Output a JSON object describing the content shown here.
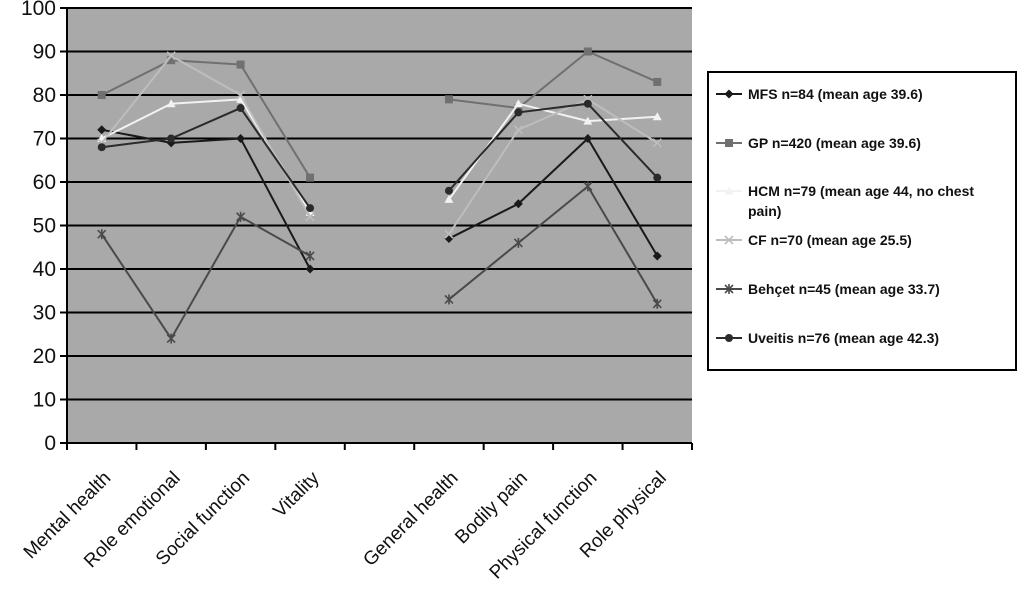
{
  "chart_data": {
    "type": "line",
    "title": "",
    "xlabel": "",
    "ylabel": "",
    "ylim": [
      0,
      100
    ],
    "yticks": [
      0,
      10,
      20,
      30,
      40,
      50,
      60,
      70,
      80,
      90,
      100
    ],
    "grid": true,
    "legend_position": "right",
    "plot_background": "#a9a9a9",
    "categories": [
      "Mental health",
      "Role emotional",
      "Social function",
      "Vitality",
      "",
      "General health",
      "Bodily pain",
      "Physical function",
      "Role physical"
    ],
    "series": [
      {
        "name": "MFS n=84 (mean age 39.6)",
        "color": "#1a1a1a",
        "marker": "diamond",
        "values": [
          72,
          69,
          70,
          40,
          null,
          47,
          55,
          70,
          43
        ]
      },
      {
        "name": "GP n=420 (mean age 39.6)",
        "color": "#707070",
        "marker": "square",
        "values": [
          80,
          88,
          87,
          61,
          null,
          79,
          77,
          90,
          83
        ]
      },
      {
        "name": "HCM n=79 (mean age 44, no chest pain)",
        "color": "#f2f2f2",
        "marker": "triangle",
        "values": [
          70,
          78,
          79,
          53,
          null,
          56,
          78,
          74,
          75
        ]
      },
      {
        "name": "CF n=70 (mean age 25.5)",
        "color": "#bdbdbd",
        "marker": "x",
        "values": [
          69,
          89,
          80,
          52,
          null,
          48,
          72,
          79,
          69
        ]
      },
      {
        "name": "Behçet n=45 (mean age 33.7)",
        "color": "#4a4a4a",
        "marker": "star",
        "values": [
          48,
          24,
          52,
          43,
          null,
          33,
          46,
          59,
          32
        ]
      },
      {
        "name": "Uveitis n=76 (mean age 42.3)",
        "color": "#2b2b2b",
        "marker": "circle",
        "values": [
          68,
          70,
          77,
          54,
          null,
          58,
          76,
          78,
          61
        ]
      }
    ]
  }
}
